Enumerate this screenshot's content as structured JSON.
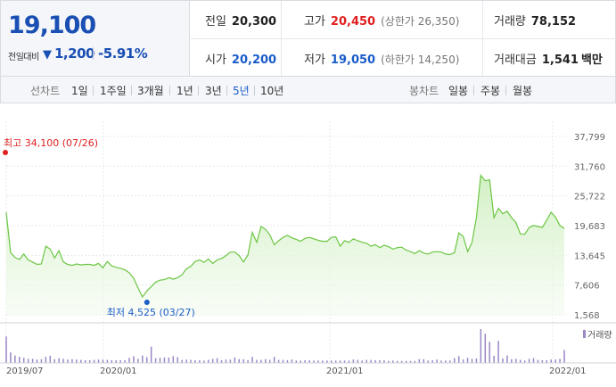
{
  "summary": {
    "price": "19,100",
    "change_label": "전일대비",
    "change_arrow": "▼",
    "change_value": "1,200",
    "change_pct": "-5.91%",
    "prev_close": {
      "label": "전일",
      "value": "20,300"
    },
    "high": {
      "label": "고가",
      "value": "20,450",
      "sub": "(상한가 26,350)"
    },
    "volume": {
      "label": "거래량",
      "value": "78,152"
    },
    "open": {
      "label": "시가",
      "value": "20,200"
    },
    "low": {
      "label": "저가",
      "value": "19,050",
      "sub": "(하한가 14,250)"
    },
    "amount": {
      "label": "거래대금",
      "value": "1,541",
      "unit": "백만"
    }
  },
  "toolbar": {
    "line_label": "선차트",
    "line_periods": [
      "1일",
      "1주일",
      "3개월",
      "1년",
      "3년",
      "5년",
      "10년"
    ],
    "active_period": "5년",
    "candle_label": "봉차트",
    "candle_periods": [
      "일봉",
      "주봉",
      "월봉"
    ]
  },
  "colors": {
    "up": "#e02020",
    "down": "#1a5cc8",
    "line": "#6cc644",
    "volume": "#9b86c7"
  },
  "chart_data": {
    "type": "area",
    "y_ticks": [
      "37,799",
      "31,760",
      "25,722",
      "19,683",
      "13,645",
      "7,606",
      "1,568"
    ],
    "ylim": [
      1568,
      37799
    ],
    "x_ticks": [
      "2019/07",
      "2020/01",
      "2021/01",
      "2022/01"
    ],
    "high_annotation": "최고 34,100 (07/26)",
    "low_annotation": "최저 4,525 (03/27)",
    "volume_legend": "거래량",
    "series": [
      {
        "values": [
          22400,
          14200,
          13200,
          12800,
          13900,
          12700,
          12300,
          11800,
          11900,
          15500,
          14900,
          13100,
          14600,
          12300,
          11800,
          11600,
          11900,
          11700,
          11800,
          11800,
          11600,
          12000,
          11100,
          12400,
          11500,
          11200,
          11000,
          10700,
          10100,
          9000,
          7000,
          5200,
          6400,
          7300,
          8200,
          8600,
          8700,
          9100,
          8800,
          9100,
          9700,
          10900,
          11400,
          12400,
          12700,
          12200,
          12900,
          12000,
          12700,
          13000,
          13600,
          14300,
          14300,
          13600,
          12300,
          13700,
          18300,
          16300,
          19500,
          18900,
          17800,
          15800,
          16600,
          17300,
          17700,
          17200,
          16900,
          16500,
          17100,
          17300,
          17000,
          16700,
          16500,
          16500,
          17300,
          17400,
          15500,
          16600,
          16300,
          17000,
          16600,
          16300,
          16100,
          15500,
          15800,
          15200,
          15700,
          15400,
          14900,
          15200,
          15300,
          14700,
          14400,
          14000,
          14600,
          14100,
          13900,
          14300,
          14400,
          14300,
          13900,
          13800,
          14200,
          18200,
          17500,
          14400,
          16300,
          21300,
          29900,
          28800,
          29000,
          21300,
          23200,
          22100,
          22600,
          21300,
          20300,
          18000,
          17900,
          19300,
          19700,
          19500,
          19300,
          20800,
          22400,
          21400,
          19700,
          19100
        ]
      },
      {
        "name": "거래량",
        "values": [
          78,
          31,
          22,
          18,
          15,
          12,
          12,
          10,
          11,
          18,
          21,
          11,
          14,
          12,
          10,
          11,
          10,
          9,
          8,
          8,
          9,
          10,
          10,
          9,
          8,
          8,
          8,
          8,
          15,
          20,
          12,
          22,
          17,
          48,
          14,
          15,
          16,
          16,
          20,
          17,
          9,
          10,
          9,
          8,
          8,
          7,
          9,
          12,
          14,
          8,
          10,
          10,
          16,
          11,
          11,
          8,
          18,
          9,
          9,
          11,
          9,
          18,
          9,
          9,
          8,
          10,
          7,
          7,
          8,
          8,
          7,
          7,
          7,
          7,
          7,
          7,
          7,
          7,
          7,
          10,
          9,
          7,
          9,
          9,
          8,
          8,
          8,
          6,
          7,
          6,
          6,
          6,
          6,
          6,
          11,
          11,
          7,
          8,
          10,
          7,
          7,
          7,
          14,
          20,
          10,
          15,
          12,
          13,
          100,
          86,
          62,
          21,
          65,
          13,
          22,
          11,
          12,
          9,
          7,
          12,
          14,
          9,
          8,
          8,
          10,
          10,
          12,
          38
        ]
      }
    ]
  }
}
